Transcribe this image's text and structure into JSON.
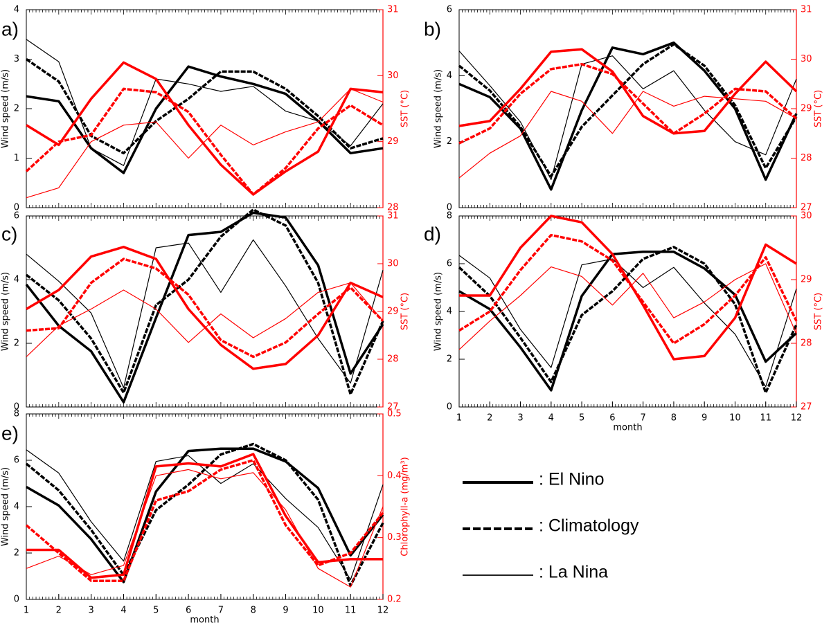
{
  "chart_data": [
    {
      "type": "line",
      "label": "a)",
      "ylabel": "Wind speed (m/s)",
      "y2label": "SST (°C)",
      "x": [
        1,
        2,
        3,
        4,
        5,
        6,
        7,
        8,
        9,
        10,
        11,
        12
      ],
      "xlim": [
        1,
        12
      ],
      "ylim": [
        0,
        4
      ],
      "yticks": [
        0,
        1,
        2,
        3,
        4
      ],
      "y2lim": [
        28,
        31
      ],
      "y2ticks": [
        28,
        29,
        30,
        31
      ],
      "series": [
        {
          "style": "thick",
          "color": "#000000",
          "axis": "y",
          "values": [
            2.25,
            2.15,
            1.2,
            0.7,
            2.0,
            2.85,
            2.65,
            2.5,
            2.3,
            1.75,
            1.1,
            1.2
          ]
        },
        {
          "style": "dashed",
          "color": "#000000",
          "axis": "y",
          "values": [
            3.0,
            2.55,
            1.45,
            1.1,
            1.75,
            2.2,
            2.75,
            2.75,
            2.4,
            1.85,
            1.2,
            1.4
          ]
        },
        {
          "style": "thin",
          "color": "#000000",
          "axis": "y",
          "values": [
            3.4,
            2.95,
            1.2,
            0.85,
            2.6,
            2.5,
            2.35,
            2.45,
            1.95,
            1.75,
            1.25,
            2.1
          ]
        },
        {
          "style": "thick",
          "color": "#ff0000",
          "axis": "y2",
          "values": [
            29.25,
            28.95,
            29.65,
            30.2,
            29.95,
            29.25,
            28.65,
            28.2,
            28.55,
            28.85,
            29.8,
            29.75
          ]
        },
        {
          "style": "dashed",
          "color": "#ff0000",
          "axis": "y2",
          "values": [
            28.55,
            29.0,
            29.1,
            29.8,
            29.75,
            29.45,
            28.8,
            28.2,
            28.6,
            29.2,
            29.55,
            29.25
          ]
        },
        {
          "style": "thin",
          "color": "#ff0000",
          "axis": "y2",
          "values": [
            28.15,
            28.3,
            29.0,
            29.25,
            29.3,
            28.75,
            29.25,
            28.95,
            29.15,
            29.3,
            29.8,
            29.6
          ]
        }
      ]
    },
    {
      "type": "line",
      "label": "b)",
      "ylabel": "Wind speed (m/s)",
      "y2label": "SST (°C)",
      "x": [
        1,
        2,
        3,
        4,
        5,
        6,
        7,
        8,
        9,
        10,
        11,
        12
      ],
      "xlim": [
        1,
        12
      ],
      "ylim": [
        0,
        6
      ],
      "yticks": [
        0,
        2,
        4,
        6
      ],
      "y2lim": [
        27,
        31
      ],
      "y2ticks": [
        27,
        28,
        29,
        30,
        31
      ],
      "series": [
        {
          "style": "thick",
          "color": "#000000",
          "axis": "y",
          "values": [
            3.75,
            3.35,
            2.4,
            0.55,
            2.95,
            4.85,
            4.65,
            5.0,
            4.15,
            3.0,
            0.85,
            2.85
          ]
        },
        {
          "style": "dashed",
          "color": "#000000",
          "axis": "y",
          "values": [
            4.3,
            3.55,
            2.45,
            0.95,
            2.45,
            3.4,
            4.35,
            4.95,
            4.3,
            3.1,
            1.2,
            2.75
          ]
        },
        {
          "style": "thin",
          "color": "#000000",
          "axis": "y",
          "values": [
            4.75,
            3.7,
            2.6,
            0.85,
            4.35,
            4.6,
            3.6,
            4.15,
            2.95,
            2.0,
            1.6,
            3.9
          ]
        },
        {
          "style": "thick",
          "color": "#ff0000",
          "axis": "y2",
          "values": [
            28.65,
            28.75,
            29.4,
            30.15,
            30.2,
            29.75,
            28.85,
            28.5,
            28.55,
            29.3,
            29.95,
            29.35
          ]
        },
        {
          "style": "dashed",
          "color": "#ff0000",
          "axis": "y2",
          "values": [
            28.3,
            28.6,
            29.3,
            29.8,
            29.9,
            29.7,
            29.1,
            28.5,
            28.9,
            29.4,
            29.35,
            28.8
          ]
        },
        {
          "style": "thin",
          "color": "#ff0000",
          "axis": "y2",
          "values": [
            27.6,
            28.1,
            28.45,
            29.35,
            29.15,
            28.5,
            29.35,
            29.05,
            29.25,
            29.2,
            29.15,
            28.8
          ]
        }
      ]
    },
    {
      "type": "line",
      "label": "c)",
      "ylabel": "Wind speed (m/s)",
      "y2label": "SST (°C)",
      "x": [
        1,
        2,
        3,
        4,
        5,
        6,
        7,
        8,
        9,
        10,
        11,
        12
      ],
      "xlim": [
        1,
        12
      ],
      "ylim": [
        0,
        6
      ],
      "yticks": [
        0,
        2,
        4,
        6
      ],
      "y2lim": [
        27,
        31
      ],
      "y2ticks": [
        27,
        28,
        29,
        30,
        31
      ],
      "series": [
        {
          "style": "thick",
          "color": "#000000",
          "axis": "y",
          "values": [
            3.85,
            2.55,
            1.75,
            0.15,
            2.8,
            5.4,
            5.5,
            6.1,
            5.95,
            4.45,
            1.05,
            2.6
          ]
        },
        {
          "style": "dashed",
          "color": "#000000",
          "axis": "y",
          "values": [
            4.15,
            3.35,
            2.15,
            0.45,
            3.2,
            4.0,
            5.35,
            6.2,
            5.7,
            3.9,
            0.4,
            2.7
          ]
        },
        {
          "style": "thin",
          "color": "#000000",
          "axis": "y",
          "values": [
            4.8,
            3.95,
            2.95,
            0.6,
            5.0,
            5.15,
            3.6,
            5.25,
            3.8,
            2.15,
            0.75,
            4.3
          ]
        },
        {
          "style": "thick",
          "color": "#ff0000",
          "axis": "y2",
          "values": [
            29.05,
            29.45,
            30.15,
            30.35,
            30.1,
            29.05,
            28.3,
            27.8,
            27.9,
            28.5,
            29.6,
            29.3
          ]
        },
        {
          "style": "dashed",
          "color": "#ff0000",
          "axis": "y2",
          "values": [
            28.6,
            28.65,
            29.6,
            30.1,
            29.9,
            29.35,
            28.4,
            28.05,
            28.35,
            28.95,
            29.5,
            28.8
          ]
        },
        {
          "style": "thin",
          "color": "#ff0000",
          "axis": "y2",
          "values": [
            28.05,
            28.7,
            29.05,
            29.45,
            29.05,
            28.35,
            28.95,
            28.45,
            28.85,
            29.4,
            29.6,
            28.8
          ]
        }
      ]
    },
    {
      "type": "line",
      "label": "d)",
      "ylabel": "Wind speed (m/s)",
      "y2label": "SST (°C)",
      "xlabel": "month",
      "x": [
        1,
        2,
        3,
        4,
        5,
        6,
        7,
        8,
        9,
        10,
        11,
        12
      ],
      "xlim": [
        1,
        12
      ],
      "xticks": [
        1,
        2,
        3,
        4,
        5,
        6,
        7,
        8,
        9,
        10,
        11,
        12
      ],
      "ylim": [
        0,
        8
      ],
      "yticks": [
        0,
        2,
        4,
        6,
        8
      ],
      "y2lim": [
        27,
        30
      ],
      "y2ticks": [
        27,
        28,
        29,
        30
      ],
      "series": [
        {
          "style": "thick",
          "color": "#000000",
          "axis": "y",
          "values": [
            4.85,
            4.1,
            2.5,
            0.7,
            4.65,
            6.4,
            6.5,
            6.5,
            5.8,
            4.7,
            1.9,
            3.1
          ]
        },
        {
          "style": "dashed",
          "color": "#000000",
          "axis": "y",
          "values": [
            5.85,
            4.65,
            2.9,
            1.05,
            3.85,
            4.85,
            6.2,
            6.7,
            6.0,
            4.3,
            0.6,
            3.45
          ]
        },
        {
          "style": "thin",
          "color": "#000000",
          "axis": "y",
          "values": [
            6.35,
            5.4,
            3.25,
            1.65,
            5.95,
            6.2,
            5.0,
            5.85,
            4.35,
            3.05,
            0.85,
            4.95
          ]
        },
        {
          "style": "thick",
          "color": "#ff0000",
          "axis": "y2",
          "values": [
            28.75,
            28.75,
            29.5,
            30.0,
            29.9,
            29.4,
            28.6,
            27.75,
            27.8,
            28.4,
            29.55,
            29.25
          ]
        },
        {
          "style": "dashed",
          "color": "#ff0000",
          "axis": "y2",
          "values": [
            28.2,
            28.5,
            29.15,
            29.7,
            29.6,
            29.3,
            28.65,
            28.0,
            28.3,
            28.75,
            29.35,
            28.35
          ]
        },
        {
          "style": "thin",
          "color": "#ff0000",
          "axis": "y2",
          "values": [
            27.9,
            28.35,
            28.75,
            29.2,
            29.05,
            28.6,
            29.1,
            28.4,
            28.65,
            29.0,
            29.25,
            28.15
          ]
        }
      ]
    },
    {
      "type": "line",
      "label": "e)",
      "ylabel": "Wind speed (m/s)",
      "y2label": "Chlorophyll-a (mg/m³)",
      "xlabel": "month",
      "x": [
        1,
        2,
        3,
        4,
        5,
        6,
        7,
        8,
        9,
        10,
        11,
        12
      ],
      "xlim": [
        1,
        12
      ],
      "xticks": [
        1,
        2,
        3,
        4,
        5,
        6,
        7,
        8,
        9,
        10,
        11,
        12
      ],
      "ylim": [
        0,
        8
      ],
      "yticks": [
        0,
        2,
        4,
        6,
        8
      ],
      "y2lim": [
        0.2,
        0.5
      ],
      "y2ticks": [
        0.2,
        0.3,
        0.4,
        0.5
      ],
      "series": [
        {
          "style": "thick",
          "color": "#000000",
          "axis": "y",
          "values": [
            4.85,
            4.05,
            2.6,
            0.75,
            4.65,
            6.4,
            6.5,
            6.5,
            5.95,
            4.8,
            1.9,
            3.65
          ]
        },
        {
          "style": "dashed",
          "color": "#000000",
          "axis": "y",
          "values": [
            5.85,
            4.7,
            3.0,
            1.05,
            3.85,
            4.95,
            6.25,
            6.7,
            6.0,
            4.3,
            0.6,
            3.3
          ]
        },
        {
          "style": "thin",
          "color": "#000000",
          "axis": "y",
          "values": [
            6.45,
            5.45,
            3.35,
            1.65,
            5.95,
            6.2,
            5.0,
            5.85,
            4.35,
            3.1,
            0.85,
            4.95
          ]
        },
        {
          "style": "thick",
          "color": "#ff0000",
          "axis": "y2",
          "values": [
            0.28,
            0.28,
            0.235,
            0.24,
            0.415,
            0.42,
            0.415,
            0.435,
            0.335,
            0.26,
            0.265,
            0.265
          ]
        },
        {
          "style": "dashed",
          "color": "#ff0000",
          "axis": "y2",
          "values": [
            0.32,
            0.275,
            0.23,
            0.23,
            0.36,
            0.375,
            0.41,
            0.425,
            0.32,
            0.255,
            0.275,
            0.34
          ]
        },
        {
          "style": "thin",
          "color": "#ff0000",
          "axis": "y2",
          "values": [
            0.25,
            0.27,
            0.24,
            0.255,
            0.4,
            0.41,
            0.395,
            0.405,
            0.345,
            0.25,
            0.22,
            0.35
          ]
        }
      ]
    }
  ],
  "legend": [
    {
      "label": ": El Nino",
      "style": "thick"
    },
    {
      "label": ": Climatology",
      "style": "dashed"
    },
    {
      "label": ": La Nina",
      "style": "thin"
    }
  ]
}
